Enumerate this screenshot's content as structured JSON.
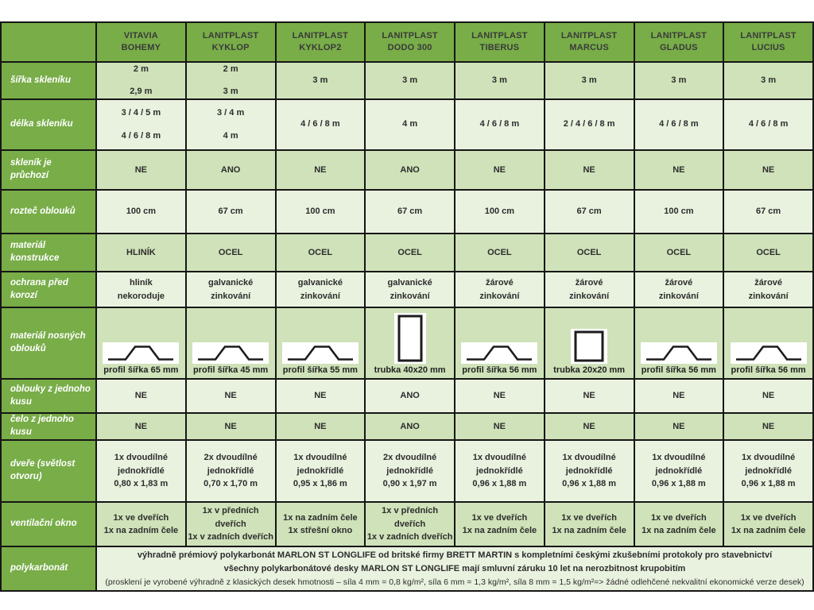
{
  "table": {
    "columns": [
      {
        "lines": [
          "VITAVIA",
          "BOHEMY"
        ]
      },
      {
        "lines": [
          "LANITPLAST",
          "KYKLOP"
        ]
      },
      {
        "lines": [
          "LANITPLAST",
          "KYKLOP2"
        ]
      },
      {
        "lines": [
          "LANITPLAST",
          "DODO 300"
        ]
      },
      {
        "lines": [
          "LANITPLAST",
          "TIBERUS"
        ]
      },
      {
        "lines": [
          "LANITPLAST",
          "MARCUS"
        ]
      },
      {
        "lines": [
          "LANITPLAST",
          "GLADUS"
        ]
      },
      {
        "lines": [
          "LANITPLAST",
          "LUCIUS"
        ]
      }
    ],
    "rows": [
      {
        "key": "sirka",
        "label": "šířka skleníku",
        "spaced": true,
        "cells": [
          [
            "2 m",
            "2,9 m"
          ],
          [
            "2 m",
            "3 m"
          ],
          [
            "3 m"
          ],
          [
            "3 m"
          ],
          [
            "3 m"
          ],
          [
            "3 m"
          ],
          [
            "3 m"
          ],
          [
            "3 m"
          ]
        ]
      },
      {
        "key": "delka",
        "label": "délka skleníku",
        "spaced": true,
        "cells": [
          [
            "3 / 4 / 5 m",
            "4 / 6 / 8 m"
          ],
          [
            "3 / 4 m",
            "4 m"
          ],
          [
            "4 / 6 / 8 m"
          ],
          [
            "4 m"
          ],
          [
            "4 / 6 / 8 m"
          ],
          [
            "2 / 4 / 6 / 8 m"
          ],
          [
            "4 / 6 / 8 m"
          ],
          [
            "4 / 6 / 8 m"
          ]
        ]
      },
      {
        "key": "pruchozi",
        "label": "skleník je průchozí",
        "cells": [
          [
            "NE"
          ],
          [
            "ANO"
          ],
          [
            "NE"
          ],
          [
            "ANO"
          ],
          [
            "NE"
          ],
          [
            "NE"
          ],
          [
            "NE"
          ],
          [
            "NE"
          ]
        ]
      },
      {
        "key": "roztec",
        "label": "rozteč oblouků",
        "cells": [
          [
            "100 cm"
          ],
          [
            "67 cm"
          ],
          [
            "100 cm"
          ],
          [
            "67 cm"
          ],
          [
            "100 cm"
          ],
          [
            "67 cm"
          ],
          [
            "100 cm"
          ],
          [
            "67 cm"
          ]
        ]
      },
      {
        "key": "material-konstrukce",
        "label": "materiál konstrukce",
        "cells": [
          [
            "HLINÍK"
          ],
          [
            "OCEL"
          ],
          [
            "OCEL"
          ],
          [
            "OCEL"
          ],
          [
            "OCEL"
          ],
          [
            "OCEL"
          ],
          [
            "OCEL"
          ],
          [
            "OCEL"
          ]
        ]
      },
      {
        "key": "ochrana-koroze",
        "label": "ochrana před korozí",
        "cells": [
          [
            "hliník",
            "nekoroduje"
          ],
          [
            "galvanické",
            "zinkování"
          ],
          [
            "galvanické",
            "zinkování"
          ],
          [
            "galvanické",
            "zinkování"
          ],
          [
            "žárové",
            "zinkování"
          ],
          [
            "žárové",
            "zinkování"
          ],
          [
            "žárové",
            "zinkování"
          ],
          [
            "žárové",
            "zinkování"
          ]
        ]
      },
      {
        "key": "nosne-oblouky",
        "label": "materiál nosných oblouků",
        "icons": [
          {
            "shape": "hat",
            "label": "profil šířka 65 mm"
          },
          {
            "shape": "hat",
            "label": "profil šířka 45 mm"
          },
          {
            "shape": "hat",
            "label": "profil šířka 55 mm"
          },
          {
            "shape": "tube-vertical",
            "label": "trubka 40x20 mm"
          },
          {
            "shape": "hat",
            "label": "profil šířka 56 mm"
          },
          {
            "shape": "tube-square",
            "label": "trubka 20x20 mm"
          },
          {
            "shape": "hat",
            "label": "profil šířka 56 mm"
          },
          {
            "shape": "hat",
            "label": "profil šířka 56 mm"
          }
        ]
      },
      {
        "key": "oblouky-kus",
        "label": "oblouky z jednoho kusu",
        "cells": [
          [
            "NE"
          ],
          [
            "NE"
          ],
          [
            "NE"
          ],
          [
            "ANO"
          ],
          [
            "NE"
          ],
          [
            "NE"
          ],
          [
            "NE"
          ],
          [
            "NE"
          ]
        ]
      },
      {
        "key": "celo-kus",
        "label": "čelo z jednoho kusu",
        "cells": [
          [
            "NE"
          ],
          [
            "NE"
          ],
          [
            "NE"
          ],
          [
            "ANO"
          ],
          [
            "NE"
          ],
          [
            "NE"
          ],
          [
            "NE"
          ],
          [
            "NE"
          ]
        ]
      },
      {
        "key": "dvere",
        "label": "dveře (světlost otvoru)",
        "cells": [
          [
            "1x dvoudílné",
            "jednokřídlé",
            "0,80 x 1,83 m"
          ],
          [
            "2x dvoudílné",
            "jednokřídlé",
            "0,70 x 1,70 m"
          ],
          [
            "1x dvoudílné",
            "jednokřídlé",
            "0,95 x 1,86 m"
          ],
          [
            "2x dvoudílné",
            "jednokřídlé",
            "0,90 x 1,97 m"
          ],
          [
            "1x dvoudílné",
            "jednokřídlé",
            "0,96 x 1,88 m"
          ],
          [
            "1x dvoudílné",
            "jednokřídlé",
            "0,96 x 1,88 m"
          ],
          [
            "1x dvoudílné",
            "jednokřídlé",
            "0,96 x 1,88 m"
          ],
          [
            "1x dvoudílné",
            "jednokřídlé",
            "0,96 x 1,88 m"
          ]
        ]
      },
      {
        "key": "ventilacni-okno",
        "label": "ventilační okno",
        "cells": [
          [
            "1x ve dveřích",
            "1x na zadním čele"
          ],
          [
            "1x v předních dveřích",
            "1x v zadních dveřích"
          ],
          [
            "1x na zadním čele",
            "1x střešní okno"
          ],
          [
            "1x v předních dveřích",
            "1x v zadních dveřích"
          ],
          [
            "1x ve dveřích",
            "1x na zadním čele"
          ],
          [
            "1x ve dveřích",
            "1x na zadním čele"
          ],
          [
            "1x ve dveřích",
            "1x na zadním čele"
          ],
          [
            "1x ve dveřích",
            "1x na zadním čele"
          ]
        ]
      }
    ],
    "footer": {
      "label": "polykarbonát",
      "lines": [
        {
          "text": "výhradně prémiový polykarbonát MARLON ST LONGLIFE od britské firmy BRETT MARTIN s kompletními českými zkušebními protokoly pro stavebnictví",
          "bold": true
        },
        {
          "text": "všechny polykarbonátové desky MARLON ST LONGLIFE mají smluvní záruku 10 let na nerozbitnost krupobitím",
          "bold": true
        },
        {
          "text": "(prosklení je vyrobené výhradně z klasických desek hmotnosti – síla 4 mm = 0,8 kg/m², síla 6 mm = 1,3 kg/m², síla 8 mm = 1,5 kg/m²=> žádné odlehčené nekvalitní ekonomické verze desek)",
          "bold": false
        }
      ]
    }
  },
  "colors": {
    "header_green": "#78ad48",
    "row_medium": "#cfe2b9",
    "row_light": "#e9f2df",
    "border": "#161616",
    "text_dark": "#2d2d2d",
    "label_text": "#ffffff"
  }
}
